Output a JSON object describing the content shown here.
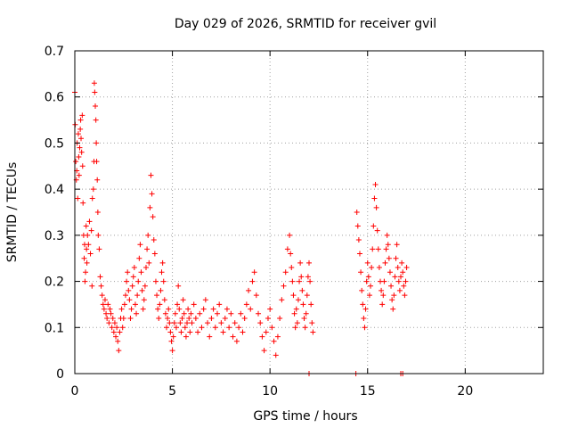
{
  "chart_data": {
    "type": "scatter",
    "title": "Day 029 of 2026, SRMTID for receiver gvil",
    "xlabel": "GPS time / hours",
    "ylabel": "SRMTID / TECUs",
    "xlim": [
      0,
      24
    ],
    "ylim": [
      0,
      0.7
    ],
    "x_ticks": [
      0,
      5,
      10,
      15,
      20
    ],
    "x_tick_labels": [
      "0",
      "5",
      "10",
      "15",
      "20"
    ],
    "y_ticks": [
      0,
      0.1,
      0.2,
      0.3,
      0.4,
      0.5,
      0.6,
      0.7
    ],
    "y_tick_labels": [
      "0",
      "0.1",
      "0.2",
      "0.3",
      "0.4",
      "0.5",
      "0.6",
      "0.7"
    ],
    "grid": true,
    "legend": "none",
    "marker": "plus",
    "color": "#ff0000",
    "series": [
      {
        "name": "SRMTID",
        "points": [
          [
            0.0,
            0.61
          ],
          [
            0.02,
            0.54
          ],
          [
            0.05,
            0.46
          ],
          [
            0.08,
            0.42
          ],
          [
            0.1,
            0.44
          ],
          [
            0.12,
            0.5
          ],
          [
            0.15,
            0.38
          ],
          [
            0.18,
            0.52
          ],
          [
            0.2,
            0.47
          ],
          [
            0.22,
            0.43
          ],
          [
            0.25,
            0.49
          ],
          [
            0.28,
            0.53
          ],
          [
            0.3,
            0.55
          ],
          [
            0.32,
            0.51
          ],
          [
            0.35,
            0.48
          ],
          [
            0.38,
            0.56
          ],
          [
            0.4,
            0.45
          ],
          [
            0.42,
            0.37
          ],
          [
            0.45,
            0.3
          ],
          [
            0.48,
            0.25
          ],
          [
            0.5,
            0.28
          ],
          [
            0.52,
            0.2
          ],
          [
            0.55,
            0.22
          ],
          [
            0.58,
            0.32
          ],
          [
            0.6,
            0.27
          ],
          [
            0.62,
            0.24
          ],
          [
            0.65,
            0.3
          ],
          [
            0.7,
            0.28
          ],
          [
            0.75,
            0.33
          ],
          [
            0.8,
            0.26
          ],
          [
            0.85,
            0.31
          ],
          [
            0.88,
            0.19
          ],
          [
            0.9,
            0.38
          ],
          [
            0.95,
            0.4
          ],
          [
            0.98,
            0.46
          ],
          [
            1.0,
            0.63
          ],
          [
            1.02,
            0.61
          ],
          [
            1.05,
            0.58
          ],
          [
            1.08,
            0.55
          ],
          [
            1.1,
            0.5
          ],
          [
            1.12,
            0.46
          ],
          [
            1.15,
            0.42
          ],
          [
            1.18,
            0.35
          ],
          [
            1.2,
            0.3
          ],
          [
            1.25,
            0.27
          ],
          [
            1.3,
            0.21
          ],
          [
            1.35,
            0.19
          ],
          [
            1.4,
            0.17
          ],
          [
            1.45,
            0.15
          ],
          [
            1.5,
            0.14
          ],
          [
            1.55,
            0.16
          ],
          [
            1.6,
            0.13
          ],
          [
            1.65,
            0.12
          ],
          [
            1.7,
            0.15
          ],
          [
            1.75,
            0.11
          ],
          [
            1.8,
            0.14
          ],
          [
            1.85,
            0.13
          ],
          [
            1.9,
            0.1
          ],
          [
            1.95,
            0.12
          ],
          [
            2.0,
            0.09
          ],
          [
            2.05,
            0.11
          ],
          [
            2.1,
            0.08
          ],
          [
            2.15,
            0.1
          ],
          [
            2.2,
            0.07
          ],
          [
            2.25,
            0.05
          ],
          [
            2.3,
            0.09
          ],
          [
            2.35,
            0.12
          ],
          [
            2.4,
            0.14
          ],
          [
            2.45,
            0.1
          ],
          [
            2.5,
            0.12
          ],
          [
            2.55,
            0.15
          ],
          [
            2.6,
            0.17
          ],
          [
            2.65,
            0.2
          ],
          [
            2.7,
            0.22
          ],
          [
            2.75,
            0.18
          ],
          [
            2.8,
            0.16
          ],
          [
            2.85,
            0.12
          ],
          [
            2.9,
            0.14
          ],
          [
            2.95,
            0.19
          ],
          [
            3.0,
            0.21
          ],
          [
            3.05,
            0.23
          ],
          [
            3.1,
            0.15
          ],
          [
            3.15,
            0.13
          ],
          [
            3.2,
            0.17
          ],
          [
            3.25,
            0.2
          ],
          [
            3.3,
            0.25
          ],
          [
            3.35,
            0.28
          ],
          [
            3.4,
            0.22
          ],
          [
            3.45,
            0.18
          ],
          [
            3.5,
            0.14
          ],
          [
            3.55,
            0.16
          ],
          [
            3.6,
            0.19
          ],
          [
            3.65,
            0.23
          ],
          [
            3.7,
            0.27
          ],
          [
            3.75,
            0.3
          ],
          [
            3.8,
            0.24
          ],
          [
            3.85,
            0.36
          ],
          [
            3.9,
            0.43
          ],
          [
            3.95,
            0.39
          ],
          [
            4.0,
            0.34
          ],
          [
            4.05,
            0.29
          ],
          [
            4.1,
            0.26
          ],
          [
            4.15,
            0.2
          ],
          [
            4.2,
            0.17
          ],
          [
            4.25,
            0.14
          ],
          [
            4.3,
            0.12
          ],
          [
            4.35,
            0.15
          ],
          [
            4.4,
            0.18
          ],
          [
            4.45,
            0.22
          ],
          [
            4.5,
            0.24
          ],
          [
            4.55,
            0.2
          ],
          [
            4.6,
            0.16
          ],
          [
            4.65,
            0.13
          ],
          [
            4.7,
            0.1
          ],
          [
            4.75,
            0.12
          ],
          [
            4.8,
            0.14
          ],
          [
            4.85,
            0.11
          ],
          [
            4.9,
            0.09
          ],
          [
            4.95,
            0.07
          ],
          [
            5.0,
            0.05
          ],
          [
            5.05,
            0.08
          ],
          [
            5.1,
            0.11
          ],
          [
            5.15,
            0.13
          ],
          [
            5.2,
            0.1
          ],
          [
            5.25,
            0.15
          ],
          [
            5.3,
            0.19
          ],
          [
            5.35,
            0.14
          ],
          [
            5.4,
            0.11
          ],
          [
            5.45,
            0.09
          ],
          [
            5.5,
            0.12
          ],
          [
            5.55,
            0.16
          ],
          [
            5.6,
            0.13
          ],
          [
            5.65,
            0.1
          ],
          [
            5.7,
            0.08
          ],
          [
            5.75,
            0.11
          ],
          [
            5.8,
            0.14
          ],
          [
            5.85,
            0.12
          ],
          [
            5.9,
            0.09
          ],
          [
            5.95,
            0.13
          ],
          [
            6.0,
            0.11
          ],
          [
            6.1,
            0.15
          ],
          [
            6.2,
            0.12
          ],
          [
            6.3,
            0.09
          ],
          [
            6.4,
            0.13
          ],
          [
            6.5,
            0.1
          ],
          [
            6.6,
            0.14
          ],
          [
            6.7,
            0.16
          ],
          [
            6.8,
            0.11
          ],
          [
            6.9,
            0.08
          ],
          [
            7.0,
            0.12
          ],
          [
            7.1,
            0.14
          ],
          [
            7.2,
            0.1
          ],
          [
            7.3,
            0.13
          ],
          [
            7.4,
            0.15
          ],
          [
            7.5,
            0.11
          ],
          [
            7.6,
            0.09
          ],
          [
            7.7,
            0.12
          ],
          [
            7.8,
            0.14
          ],
          [
            7.9,
            0.1
          ],
          [
            8.0,
            0.13
          ],
          [
            8.1,
            0.08
          ],
          [
            8.2,
            0.11
          ],
          [
            8.3,
            0.07
          ],
          [
            8.4,
            0.1
          ],
          [
            8.5,
            0.13
          ],
          [
            8.6,
            0.09
          ],
          [
            8.7,
            0.12
          ],
          [
            8.8,
            0.15
          ],
          [
            8.9,
            0.18
          ],
          [
            9.0,
            0.14
          ],
          [
            9.1,
            0.2
          ],
          [
            9.2,
            0.22
          ],
          [
            9.3,
            0.17
          ],
          [
            9.4,
            0.13
          ],
          [
            9.5,
            0.11
          ],
          [
            9.6,
            0.08
          ],
          [
            9.7,
            0.05
          ],
          [
            9.8,
            0.09
          ],
          [
            9.9,
            0.12
          ],
          [
            10.0,
            0.14
          ],
          [
            10.1,
            0.1
          ],
          [
            10.2,
            0.07
          ],
          [
            10.3,
            0.04
          ],
          [
            10.4,
            0.08
          ],
          [
            10.5,
            0.12
          ],
          [
            10.6,
            0.16
          ],
          [
            10.7,
            0.19
          ],
          [
            10.8,
            0.22
          ],
          [
            10.9,
            0.27
          ],
          [
            11.0,
            0.3
          ],
          [
            11.05,
            0.26
          ],
          [
            11.1,
            0.23
          ],
          [
            11.15,
            0.2
          ],
          [
            11.2,
            0.17
          ],
          [
            11.25,
            0.13
          ],
          [
            11.3,
            0.1
          ],
          [
            11.35,
            0.14
          ],
          [
            11.4,
            0.11
          ],
          [
            11.45,
            0.16
          ],
          [
            11.5,
            0.2
          ],
          [
            11.55,
            0.24
          ],
          [
            11.6,
            0.21
          ],
          [
            11.65,
            0.18
          ],
          [
            11.7,
            0.15
          ],
          [
            11.75,
            0.12
          ],
          [
            11.8,
            0.1
          ],
          [
            11.85,
            0.13
          ],
          [
            11.9,
            0.17
          ],
          [
            11.95,
            0.21
          ],
          [
            12.0,
            0.24
          ],
          [
            12.05,
            0.2
          ],
          [
            12.1,
            0.15
          ],
          [
            12.15,
            0.11
          ],
          [
            12.2,
            0.09
          ],
          [
            12.0,
            0.0
          ],
          [
            14.4,
            0.0
          ],
          [
            14.45,
            0.35
          ],
          [
            14.5,
            0.32
          ],
          [
            14.55,
            0.29
          ],
          [
            14.6,
            0.26
          ],
          [
            14.65,
            0.22
          ],
          [
            14.7,
            0.18
          ],
          [
            14.75,
            0.15
          ],
          [
            14.8,
            0.12
          ],
          [
            14.85,
            0.1
          ],
          [
            14.9,
            0.14
          ],
          [
            14.95,
            0.2
          ],
          [
            15.0,
            0.24
          ],
          [
            15.05,
            0.21
          ],
          [
            15.1,
            0.17
          ],
          [
            15.15,
            0.19
          ],
          [
            15.2,
            0.23
          ],
          [
            15.25,
            0.27
          ],
          [
            15.3,
            0.32
          ],
          [
            15.35,
            0.38
          ],
          [
            15.4,
            0.41
          ],
          [
            15.45,
            0.36
          ],
          [
            15.5,
            0.31
          ],
          [
            15.55,
            0.27
          ],
          [
            15.6,
            0.23
          ],
          [
            15.65,
            0.2
          ],
          [
            15.7,
            0.18
          ],
          [
            15.75,
            0.15
          ],
          [
            15.8,
            0.17
          ],
          [
            15.85,
            0.2
          ],
          [
            15.9,
            0.24
          ],
          [
            15.95,
            0.27
          ],
          [
            16.0,
            0.3
          ],
          [
            16.05,
            0.28
          ],
          [
            16.1,
            0.25
          ],
          [
            16.15,
            0.22
          ],
          [
            16.2,
            0.19
          ],
          [
            16.25,
            0.16
          ],
          [
            16.3,
            0.14
          ],
          [
            16.35,
            0.17
          ],
          [
            16.4,
            0.21
          ],
          [
            16.45,
            0.25
          ],
          [
            16.5,
            0.28
          ],
          [
            16.55,
            0.23
          ],
          [
            16.6,
            0.2
          ],
          [
            16.65,
            0.18
          ],
          [
            16.7,
            0.21
          ],
          [
            16.75,
            0.24
          ],
          [
            16.8,
            0.22
          ],
          [
            16.85,
            0.19
          ],
          [
            16.9,
            0.17
          ],
          [
            16.95,
            0.2
          ],
          [
            17.0,
            0.23
          ],
          [
            16.7,
            0.0
          ],
          [
            16.8,
            0.0
          ]
        ]
      }
    ]
  }
}
